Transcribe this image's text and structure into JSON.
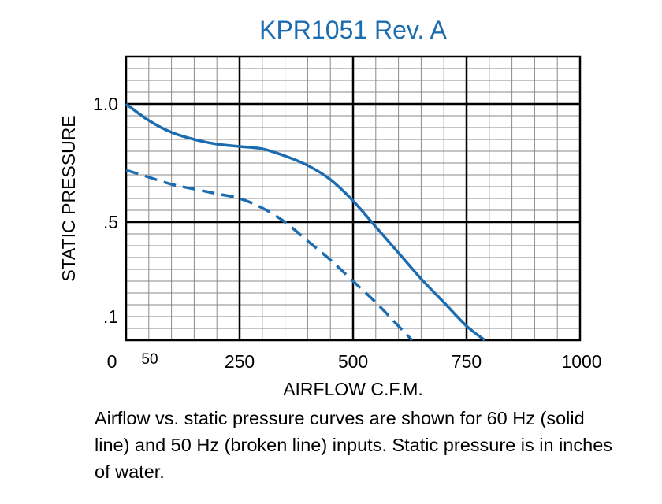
{
  "chart_data": {
    "type": "line",
    "title": "KPR1051 Rev. A",
    "xlabel": "AIRFLOW C.F.M.",
    "ylabel": "STATIC PRESSURE",
    "xlim": [
      0,
      1000
    ],
    "ylim": [
      0,
      1.2
    ],
    "grid": true,
    "x_tick_labels": [
      {
        "value": 0,
        "label": "0"
      },
      {
        "value": 50,
        "label": "50"
      },
      {
        "value": 250,
        "label": "250"
      },
      {
        "value": 500,
        "label": "500"
      },
      {
        "value": 750,
        "label": "750"
      },
      {
        "value": 1000,
        "label": "1000"
      }
    ],
    "y_tick_labels": [
      {
        "value": 1.0,
        "label": "1.0"
      },
      {
        "value": 0.5,
        "label": ".5"
      },
      {
        "value": 0.1,
        "label": ".1"
      }
    ],
    "series": [
      {
        "style": "solid",
        "color": "#1c6cb0",
        "x": [
          0,
          50,
          100,
          150,
          200,
          250,
          300,
          350,
          400,
          450,
          500,
          550,
          600,
          650,
          700,
          750,
          790
        ],
        "y": [
          1.0,
          0.93,
          0.88,
          0.85,
          0.83,
          0.82,
          0.81,
          0.78,
          0.74,
          0.68,
          0.59,
          0.48,
          0.37,
          0.26,
          0.16,
          0.06,
          0.0
        ]
      },
      {
        "style": "dashed",
        "color": "#1c6cb0",
        "x": [
          0,
          50,
          100,
          150,
          200,
          250,
          300,
          350,
          400,
          450,
          500,
          550,
          600,
          630
        ],
        "y": [
          0.72,
          0.69,
          0.66,
          0.64,
          0.62,
          0.6,
          0.56,
          0.5,
          0.42,
          0.34,
          0.25,
          0.16,
          0.06,
          0.0
        ]
      }
    ]
  },
  "caption": "Airflow vs. static pressure curves are shown for 60 Hz (solid line) and 50 Hz (broken line) inputs. Static pressure is in inches of water."
}
